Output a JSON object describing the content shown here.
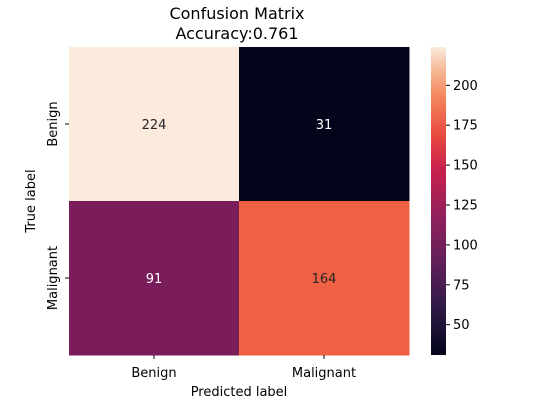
{
  "chart_data": {
    "type": "heatmap",
    "title_line1": "Confusion Matrix",
    "title_line2": "Accuracy:0.761",
    "xlabel": "Predicted label",
    "ylabel": "True label",
    "x_categories": [
      "Benign",
      "Malignant"
    ],
    "y_categories": [
      "Benign",
      "Malignant"
    ],
    "values": [
      [
        224,
        31
      ],
      [
        91,
        164
      ]
    ],
    "colormap": "rocket",
    "colorbar": {
      "vmin": 31,
      "vmax": 224,
      "ticks": [
        50,
        75,
        100,
        125,
        150,
        175,
        200
      ],
      "tick_labels": [
        "50",
        "75",
        "100",
        "125",
        "150",
        "175",
        "200"
      ]
    },
    "cell_colors": [
      [
        "#faebdd",
        "#03051a"
      ],
      [
        "#7c1d5b",
        "#f06043"
      ]
    ],
    "annotation_colors": [
      [
        "#262626",
        "#ffffff"
      ],
      [
        "#ffffff",
        "#262626"
      ]
    ],
    "grid": false,
    "legend": "none"
  }
}
